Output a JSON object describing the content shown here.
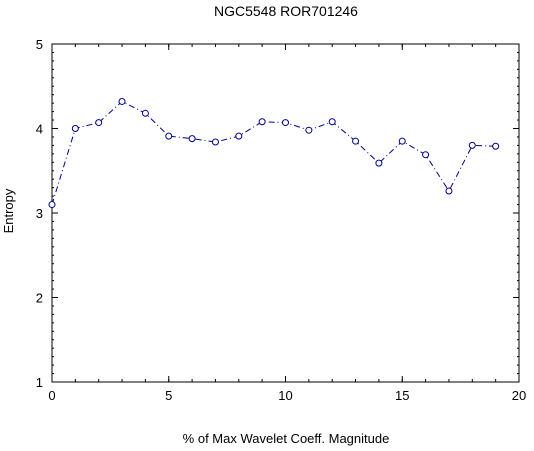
{
  "chart_data": {
    "type": "line",
    "title": "NGC5548   ROR701246",
    "xlabel": "% of Max Wavelet Coeff. Magnitude",
    "ylabel": "Entropy",
    "xlim": [
      0,
      20
    ],
    "ylim": [
      1,
      5
    ],
    "x_ticks": [
      "0",
      "5",
      "10",
      "15",
      "20"
    ],
    "y_ticks": [
      "1",
      "2",
      "3",
      "4",
      "5"
    ],
    "grid": false,
    "marker": "open-circle",
    "line_style": "dash-dot",
    "line_color": "#00008b",
    "series": [
      {
        "x": [
          0,
          1,
          2,
          3,
          4,
          5,
          6,
          7,
          8,
          9,
          10,
          11,
          12,
          13,
          14,
          15,
          16,
          17,
          18,
          19
        ],
        "values": [
          3.1,
          4.0,
          4.07,
          4.32,
          4.18,
          3.91,
          3.88,
          3.84,
          3.91,
          4.08,
          4.07,
          3.98,
          4.08,
          3.85,
          3.59,
          3.85,
          3.69,
          3.26,
          3.8,
          3.79
        ]
      }
    ]
  }
}
